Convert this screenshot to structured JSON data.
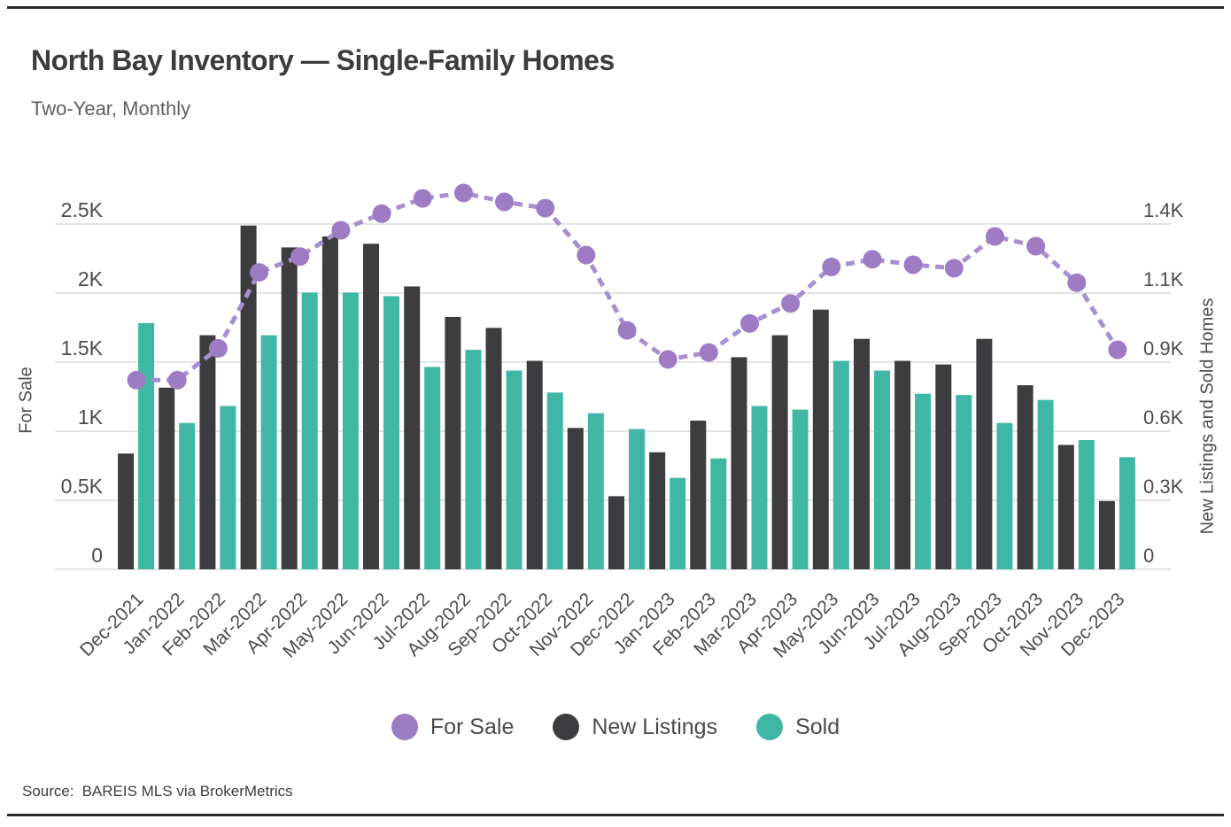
{
  "page": {
    "source_label": "Source:",
    "source_text": "BAREIS MLS via BrokerMetrics"
  },
  "chart_data": {
    "type": "bar+line",
    "title": "North Bay Inventory — Single-Family Homes",
    "subtitle": "Two-Year, Monthly",
    "grid": true,
    "legend_position": "bottom",
    "categories": [
      "Dec-2021",
      "Jan-2022",
      "Feb-2022",
      "Mar-2022",
      "Apr-2022",
      "May-2022",
      "Jun-2022",
      "Jul-2022",
      "Aug-2022",
      "Sep-2022",
      "Oct-2022",
      "Nov-2022",
      "Dec-2022",
      "Jan-2023",
      "Feb-2023",
      "Mar-2023",
      "Apr-2023",
      "May-2023",
      "Jun-2023",
      "Jul-2023",
      "Aug-2023",
      "Sep-2023",
      "Oct-2023",
      "Nov-2023",
      "Dec-2023"
    ],
    "series": [
      {
        "name": "For Sale",
        "type": "line",
        "axis": "left",
        "color": "#9d7cc4",
        "line_color": "#a78fd2",
        "line_style": "dashed",
        "values": [
          1370,
          1370,
          1600,
          2150,
          2265,
          2455,
          2575,
          2685,
          2725,
          2660,
          2615,
          2275,
          1730,
          1520,
          1570,
          1780,
          1925,
          2190,
          2245,
          2205,
          2180,
          2410,
          2340,
          2075,
          1590
        ]
      },
      {
        "name": "New Listings",
        "type": "bar",
        "axis": "right",
        "color": "#3d3d40",
        "values": [
          475,
          745,
          960,
          1410,
          1320,
          1365,
          1335,
          1160,
          1035,
          990,
          855,
          580,
          300,
          480,
          610,
          870,
          960,
          1065,
          945,
          855,
          840,
          945,
          755,
          510,
          280
        ]
      },
      {
        "name": "Sold",
        "type": "bar",
        "axis": "right",
        "color": "#3fb7a4",
        "values": [
          1010,
          600,
          670,
          960,
          1135,
          1135,
          1120,
          830,
          900,
          815,
          725,
          640,
          575,
          375,
          455,
          670,
          655,
          855,
          815,
          720,
          715,
          600,
          695,
          530,
          460
        ]
      }
    ],
    "left_axis": {
      "label": "For Sale",
      "ylim": [
        0,
        2500
      ],
      "tick_values": [
        0,
        500,
        1000,
        1500,
        2000,
        2500
      ],
      "tick_labels": [
        "0",
        "0.5K",
        "1K",
        "1.5K",
        "2K",
        "2.5K"
      ]
    },
    "right_axis": {
      "label": "New Listings and Sold Homes",
      "ylim": [
        0,
        1416
      ],
      "tick_values": [
        0,
        283,
        566,
        850,
        1133,
        1416
      ],
      "tick_labels": [
        "0",
        "0.3K",
        "0.6K",
        "0.9K",
        "1.1K",
        "1.4K"
      ]
    }
  }
}
